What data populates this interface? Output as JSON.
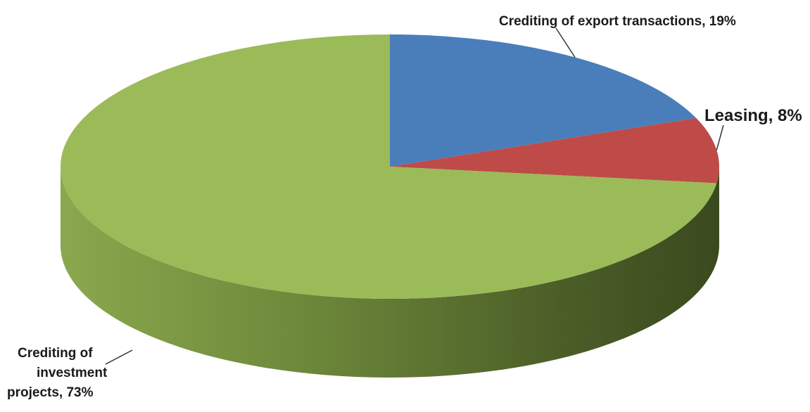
{
  "chart_data": {
    "type": "pie",
    "style": "3d",
    "slices": [
      {
        "label": "Crediting of export transactions",
        "value": 19,
        "color": "#4A7EBB"
      },
      {
        "label": "Leasing",
        "value": 8,
        "color": "#BE4B48"
      },
      {
        "label": "Crediting of investment projects",
        "value": 73,
        "color": "#9BBB59"
      }
    ],
    "data_labels": [
      {
        "text": "Crediting of export transactions, 19%"
      },
      {
        "text": "Leasing, 8%"
      },
      {
        "lines": [
          "Crediting of",
          "investment",
          "projects, 73%"
        ]
      }
    ]
  }
}
